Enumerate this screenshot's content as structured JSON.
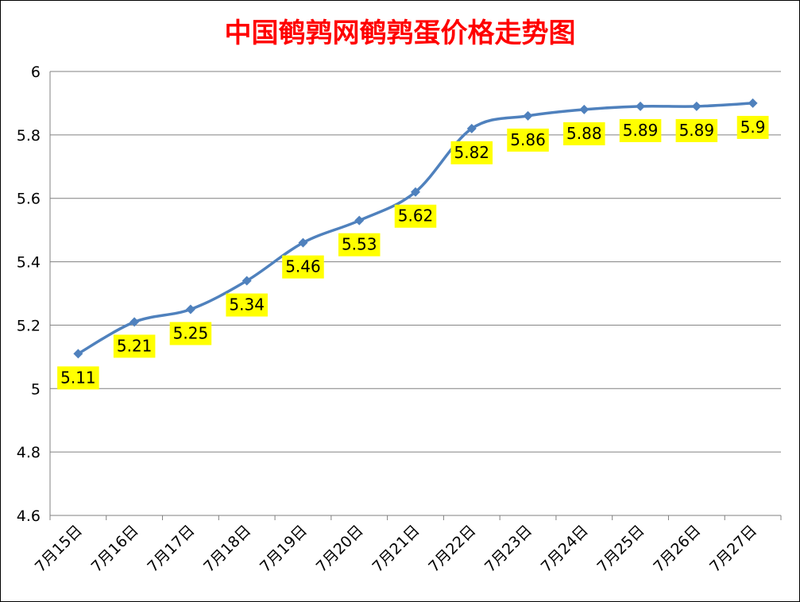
{
  "colors": {
    "title": "#ff0000",
    "line": "#4f81bd",
    "grid": "#808080",
    "axis": "#808080",
    "label_bg": "#ffff00"
  },
  "chart_data": {
    "type": "line",
    "title": "中国鹌鹑网鹌鹑蛋价格走势图",
    "xlabel": "",
    "ylabel": "",
    "ylim": [
      4.6,
      6
    ],
    "yticks": [
      "4.6",
      "4.8",
      "5",
      "5.2",
      "5.4",
      "5.6",
      "5.8",
      "6"
    ],
    "categories": [
      "7月15日",
      "7月16日",
      "7月17日",
      "7月18日",
      "7月19日",
      "7月20日",
      "7月21日",
      "7月22日",
      "7月23日",
      "7月24日",
      "7月25日",
      "7月26日",
      "7月27日"
    ],
    "series": [
      {
        "values": [
          5.11,
          5.21,
          5.25,
          5.34,
          5.46,
          5.53,
          5.62,
          5.82,
          5.86,
          5.88,
          5.89,
          5.89,
          5.9
        ],
        "labels": [
          "5.11",
          "5.21",
          "5.25",
          "5.34",
          "5.46",
          "5.53",
          "5.62",
          "5.82",
          "5.86",
          "5.88",
          "5.89",
          "5.89",
          "5.9"
        ]
      }
    ],
    "grid": true,
    "legend": "none",
    "marker": "diamond"
  }
}
